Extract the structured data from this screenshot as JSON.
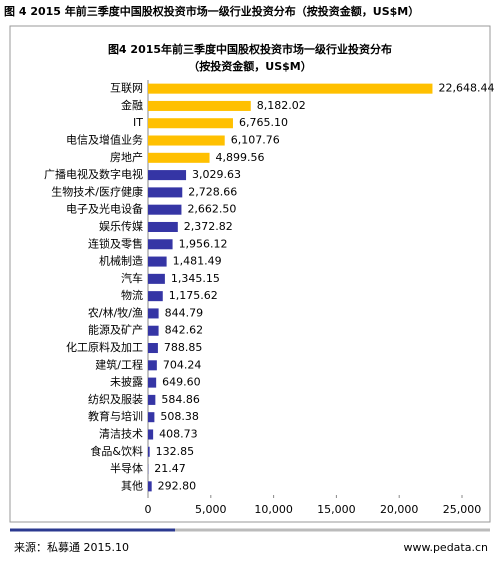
{
  "caption": "图 4 2015 年前三季度中国股权投资市场一级行业投资分布（按投资金额，US$M）",
  "chart_data": {
    "type": "bar",
    "orientation": "horizontal",
    "title": "图4 2015年前三季度中国股权投资市场一级行业投资分布",
    "subtitle": "（按投资金额，US$M）",
    "categories": [
      "互联网",
      "金融",
      "IT",
      "电信及增值业务",
      "房地产",
      "广播电视及数字电视",
      "生物技术/医疗健康",
      "电子及光电设备",
      "娱乐传媒",
      "连锁及零售",
      "机械制造",
      "汽车",
      "物流",
      "农/林/牧/渔",
      "能源及矿产",
      "化工原料及加工",
      "建筑/工程",
      "未披露",
      "纺织及服装",
      "教育与培训",
      "清洁技术",
      "食品&饮料",
      "半导体",
      "其他"
    ],
    "values": [
      22648.44,
      8182.02,
      6765.1,
      6107.76,
      4899.56,
      3029.63,
      2728.66,
      2662.5,
      2372.82,
      1956.12,
      1481.49,
      1345.15,
      1175.62,
      844.79,
      842.62,
      788.85,
      704.24,
      649.6,
      584.86,
      508.38,
      408.73,
      132.85,
      21.47,
      292.8
    ],
    "value_labels": [
      "22,648.44",
      "8,182.02",
      "6,765.10",
      "6,107.76",
      "4,899.56",
      "3,029.63",
      "2,728.66",
      "2,662.50",
      "2,372.82",
      "1,956.12",
      "1,481.49",
      "1,345.15",
      "1,175.62",
      "844.79",
      "842.62",
      "788.85",
      "704.24",
      "649.60",
      "584.86",
      "508.38",
      "408.73",
      "132.85",
      "21.47",
      "292.80"
    ],
    "colors": [
      "#ffc000",
      "#ffc000",
      "#ffc000",
      "#ffc000",
      "#ffc000",
      "#3535a5",
      "#3535a5",
      "#3535a5",
      "#3535a5",
      "#3535a5",
      "#3535a5",
      "#3535a5",
      "#3535a5",
      "#3535a5",
      "#3535a5",
      "#3535a5",
      "#3535a5",
      "#3535a5",
      "#3535a5",
      "#3535a5",
      "#3535a5",
      "#3535a5",
      "#3535a5",
      "#3535a5"
    ],
    "xlim": [
      0,
      25000
    ],
    "xticks": [
      0,
      {
        "value": 5000,
        "label": "5,000"
      },
      {
        "value": 10000,
        "label": "10,000"
      },
      {
        "value": 15000,
        "label": "15,000"
      },
      {
        "value": 20000,
        "label": "20,000"
      },
      {
        "value": 25000,
        "label": "25,000"
      }
    ]
  },
  "source": "来源：私募通 2015.10",
  "website": "www.pedata.cn"
}
